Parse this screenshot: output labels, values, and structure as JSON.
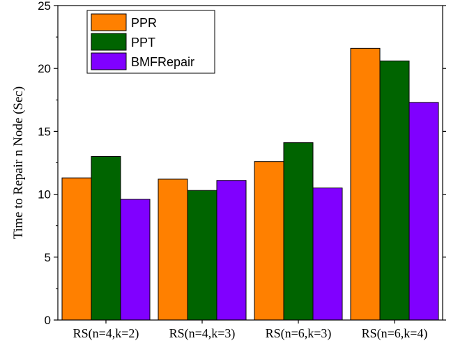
{
  "chart_data": {
    "type": "bar",
    "title": "",
    "xlabel": "",
    "ylabel": "Time to Repair n Node (Sec)",
    "ylim": [
      0,
      25
    ],
    "yticks": [
      0,
      5,
      10,
      15,
      20,
      25
    ],
    "categories": [
      "RS(n=4,k=2)",
      "RS(n=4,k=3)",
      "RS(n=6,k=3)",
      "RS(n=6,k=4)"
    ],
    "series": [
      {
        "name": "PPR",
        "color": "#FF8000",
        "values": [
          11.3,
          11.2,
          12.6,
          21.6
        ]
      },
      {
        "name": "PPT",
        "color": "#006400",
        "values": [
          13.0,
          10.3,
          14.1,
          20.6
        ]
      },
      {
        "name": "BMFRepair",
        "color": "#8000FF",
        "values": [
          9.6,
          11.1,
          10.5,
          17.3
        ]
      }
    ],
    "legend_position": "top-left",
    "grid": false
  }
}
